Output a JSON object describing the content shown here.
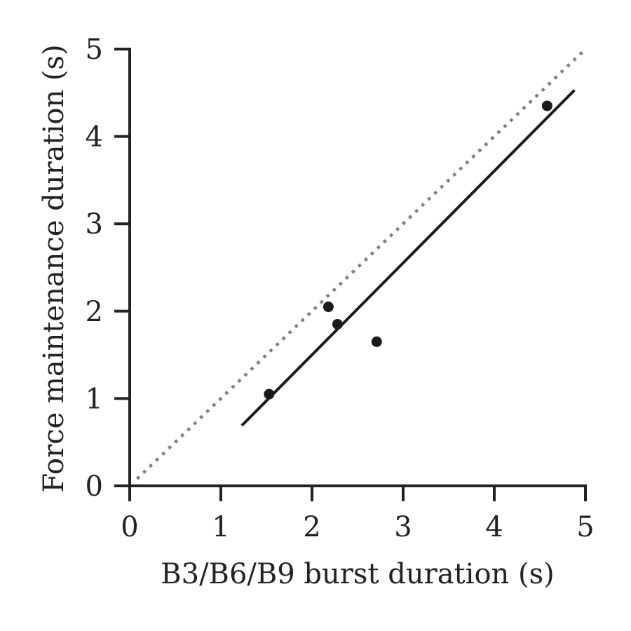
{
  "chart_data": {
    "type": "scatter",
    "xlabel": "B3/B6/B9 burst duration (s)",
    "ylabel": "Force maintenance duration (s)",
    "xlim": [
      0,
      5
    ],
    "ylim": [
      0,
      5
    ],
    "x_ticks": [
      "0",
      "1",
      "2",
      "3",
      "4",
      "5"
    ],
    "y_ticks": [
      "0",
      "1",
      "2",
      "3",
      "4",
      "5"
    ],
    "grid": false,
    "legend": "none",
    "colors": {
      "points": "#1a1a1a",
      "fit": "#1a1a1a",
      "identity": "#808080",
      "axis": "#222222"
    },
    "series": [
      {
        "kind": "points",
        "x": [
          1.53,
          2.18,
          2.28,
          2.71,
          4.58
        ],
        "y": [
          1.05,
          2.05,
          1.85,
          1.65,
          4.35
        ]
      },
      {
        "kind": "fit-line",
        "x": [
          1.23,
          4.88
        ],
        "y": [
          0.69,
          4.53
        ]
      },
      {
        "kind": "identity-line",
        "x": [
          0.08,
          5.0
        ],
        "y": [
          0.08,
          5.0
        ]
      }
    ]
  }
}
